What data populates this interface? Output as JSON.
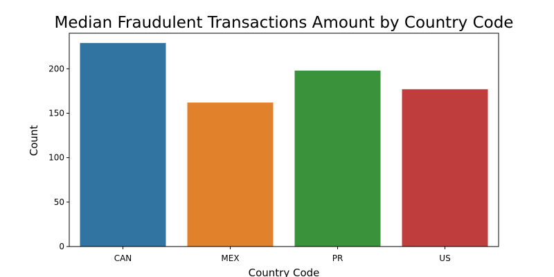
{
  "chart_data": {
    "type": "bar",
    "title": "Median Fraudulent Transactions Amount by Country Code",
    "xlabel": "Country Code",
    "ylabel": "Count",
    "categories": [
      "CAN",
      "MEX",
      "PR",
      "US"
    ],
    "values": [
      229,
      162,
      198,
      177
    ],
    "colors": [
      "#3274a1",
      "#e1812c",
      "#3a923a",
      "#c03d3e"
    ],
    "ylim": [
      0,
      240
    ],
    "yticks": [
      0,
      50,
      100,
      150,
      200
    ],
    "grid": false,
    "legend": "none"
  }
}
